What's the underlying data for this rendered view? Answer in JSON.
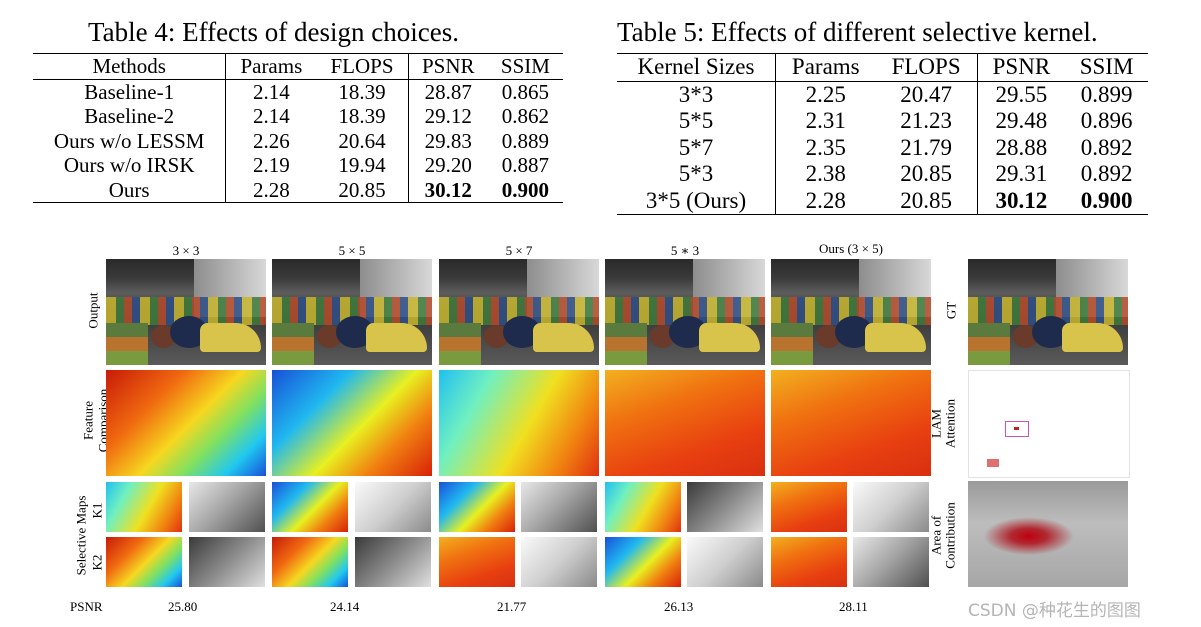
{
  "table4": {
    "title": "Table 4: Effects of design choices.",
    "headers": [
      "Methods",
      "Params",
      "FLOPS",
      "PSNR",
      "SSIM"
    ],
    "rows": [
      [
        "Baseline-1",
        "2.14",
        "18.39",
        "28.87",
        "0.865"
      ],
      [
        "Baseline-2",
        "2.14",
        "18.39",
        "29.12",
        "0.862"
      ],
      [
        "Ours w/o LESSM",
        "2.26",
        "20.64",
        "29.83",
        "0.889"
      ],
      [
        "Ours w/o IRSK",
        "2.19",
        "19.94",
        "29.20",
        "0.887"
      ],
      [
        "Ours",
        "2.28",
        "20.85",
        "30.12",
        "0.900"
      ]
    ]
  },
  "table5": {
    "title": "Table 5: Effects of different selective kernel.",
    "headers": [
      "Kernel Sizes",
      "Params",
      "FLOPS",
      "PSNR",
      "SSIM"
    ],
    "rows": [
      [
        "3*3",
        "2.25",
        "20.47",
        "29.55",
        "0.899"
      ],
      [
        "5*5",
        "2.31",
        "21.23",
        "29.48",
        "0.896"
      ],
      [
        "5*7",
        "2.35",
        "21.79",
        "28.88",
        "0.892"
      ],
      [
        "5*3",
        "2.38",
        "20.85",
        "29.31",
        "0.892"
      ],
      [
        "3*5 (Ours)",
        "2.28",
        "20.85",
        "30.12",
        "0.900"
      ]
    ]
  },
  "figure": {
    "column_titles": [
      "3 × 3",
      "5 × 5",
      "5 × 7",
      "5 ∗ 3",
      "Ours (3 × 5)"
    ],
    "row_labels": {
      "output": "Output",
      "feature_line1": "Feature",
      "feature_line2": "Comparison",
      "selective_maps": "Selective Maps",
      "k1": "K1",
      "k2": "K2"
    },
    "right_labels": {
      "gt": "GT",
      "lam_line1": "LAM",
      "lam_line2": "Attention",
      "area_line1": "Area of",
      "area_line2": "Contribution"
    },
    "psnr_label": "PSNR",
    "psnr_values": [
      "25.80",
      "24.14",
      "21.77",
      "26.13",
      "28.11"
    ]
  },
  "watermark": "CSDN @种花生的图图"
}
